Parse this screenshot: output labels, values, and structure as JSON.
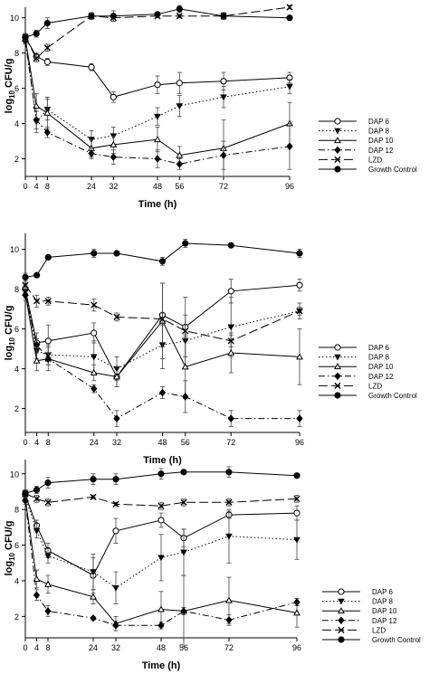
{
  "chart_data": [
    {
      "type": "line",
      "xlabel": "Time (h)",
      "ylabel_main": "log",
      "ylabel_sub": "10",
      "ylabel_tail": " CFU/g",
      "x": [
        0,
        4,
        8,
        24,
        32,
        48,
        56,
        72,
        96
      ],
      "x_ticks": [
        0,
        4,
        8,
        24,
        32,
        48,
        56,
        72,
        96
      ],
      "y_ticks": [
        2,
        4,
        6,
        8,
        10
      ],
      "xlim": [
        0,
        96
      ],
      "ylim": [
        1,
        10.6
      ],
      "legend_position": "right",
      "series": [
        {
          "name": "DAP 6",
          "marker": "open-circle",
          "dash": "solid",
          "values": [
            8.9,
            7.8,
            7.5,
            7.2,
            5.5,
            6.2,
            6.3,
            6.4,
            6.6
          ],
          "errors": [
            0.2,
            0.2,
            0.2,
            0.2,
            0.3,
            0.5,
            0.6,
            0.5,
            0.3
          ]
        },
        {
          "name": "DAP 8",
          "marker": "filled-triangle-down",
          "dash": "dot",
          "values": [
            8.8,
            4.1,
            4.8,
            3.1,
            3.3,
            4.4,
            5.0,
            5.5,
            6.1
          ],
          "errors": [
            0.2,
            0.6,
            0.6,
            0.5,
            0.5,
            0.5,
            0.6,
            0.6,
            0.4
          ]
        },
        {
          "name": "DAP 10",
          "marker": "open-triangle-up",
          "dash": "solid",
          "values": [
            8.8,
            5.0,
            4.6,
            2.6,
            2.8,
            3.1,
            2.2,
            2.6,
            4.0
          ],
          "errors": [
            0.2,
            0.7,
            0.9,
            0.5,
            0.5,
            0.7,
            0.5,
            1.6,
            1.2
          ]
        },
        {
          "name": "DAP 12",
          "marker": "filled-diamond",
          "dash": "dashdot",
          "values": [
            8.7,
            4.2,
            3.5,
            2.3,
            2.1,
            2.0,
            1.7,
            2.2,
            2.7
          ],
          "errors": [
            0.2,
            0.5,
            0.3,
            0.3,
            0.4,
            0.5,
            0.3,
            0.8,
            1.3
          ]
        },
        {
          "name": "LZD",
          "marker": "x",
          "dash": "longdash",
          "values": [
            8.9,
            7.7,
            8.3,
            10.1,
            10.0,
            10.1,
            10.1,
            10.1,
            10.6
          ],
          "errors": [
            0.2,
            0.2,
            0.2,
            0.1,
            0.2,
            0.1,
            0.1,
            0.2,
            0.1
          ]
        },
        {
          "name": "Growth Control",
          "marker": "filled-circle",
          "dash": "solid",
          "values": [
            8.9,
            9.1,
            9.7,
            10.1,
            10.1,
            10.2,
            10.5,
            10.1,
            10.0
          ],
          "errors": [
            0.2,
            0.2,
            0.3,
            0.2,
            0.3,
            0.1,
            0.2,
            0.2,
            0.1
          ]
        }
      ]
    },
    {
      "type": "line",
      "xlabel": "Time (h)",
      "ylabel_main": "log",
      "ylabel_sub": "10",
      "ylabel_tail": " CFU/g",
      "x": [
        0,
        4,
        8,
        24,
        32,
        48,
        56,
        72,
        96
      ],
      "x_ticks": [
        0,
        4,
        8,
        24,
        32,
        48,
        56,
        72,
        96
      ],
      "y_ticks": [
        2,
        4,
        6,
        8,
        10
      ],
      "xlim": [
        0,
        96
      ],
      "ylim": [
        0.8,
        10.8
      ],
      "legend_position": "right",
      "series": [
        {
          "name": "DAP 6",
          "marker": "open-circle",
          "dash": "solid",
          "values": [
            8.0,
            5.3,
            5.4,
            5.8,
            3.6,
            6.7,
            6.1,
            7.9,
            8.2
          ],
          "errors": [
            0.3,
            0.5,
            0.8,
            0.5,
            0.5,
            1.6,
            1.5,
            0.6,
            0.3
          ]
        },
        {
          "name": "DAP 8",
          "marker": "filled-triangle-down",
          "dash": "dot",
          "values": [
            7.9,
            4.9,
            4.7,
            4.6,
            4.0,
            5.2,
            5.4,
            6.1,
            6.9
          ],
          "errors": [
            0.3,
            0.4,
            0.5,
            0.8,
            0.6,
            1.2,
            1.3,
            1.5,
            0.4
          ]
        },
        {
          "name": "DAP 10",
          "marker": "open-triangle-up",
          "dash": "solid",
          "values": [
            7.8,
            4.4,
            4.5,
            3.8,
            3.6,
            6.4,
            4.1,
            4.8,
            4.6
          ],
          "errors": [
            0.3,
            0.5,
            0.6,
            0.4,
            0.5,
            1.9,
            1.6,
            1.0,
            1.4
          ]
        },
        {
          "name": "DAP 12",
          "marker": "filled-diamond",
          "dash": "dashdot",
          "values": [
            7.7,
            5.2,
            4.5,
            3.0,
            1.5,
            2.8,
            2.6,
            1.5,
            1.5
          ],
          "errors": [
            0.3,
            0.3,
            0.3,
            0.2,
            0.4,
            0.3,
            0.8,
            0.4,
            0.4
          ]
        },
        {
          "name": "LZD",
          "marker": "x",
          "dash": "longdash",
          "values": [
            8.2,
            7.4,
            7.4,
            7.2,
            6.6,
            6.5,
            5.9,
            5.4,
            6.9
          ],
          "errors": [
            0.2,
            0.3,
            0.2,
            0.3,
            0.2,
            0.3,
            0.3,
            0.3,
            0.2
          ]
        },
        {
          "name": "Growth Control",
          "marker": "filled-circle",
          "dash": "solid",
          "values": [
            8.6,
            8.7,
            9.6,
            9.8,
            9.8,
            9.4,
            10.3,
            10.2,
            9.8
          ],
          "errors": [
            0.2,
            0.1,
            0.1,
            0.2,
            0.1,
            0.2,
            0.2,
            0.1,
            0.2
          ]
        }
      ]
    },
    {
      "type": "line",
      "xlabel": "Time (h)",
      "ylabel_main": "log",
      "ylabel_sub": "10",
      "ylabel_tail": " CFU/g",
      "x": [
        0,
        4,
        8,
        24,
        32,
        48,
        56,
        72,
        96
      ],
      "x_ticks": [
        0,
        4,
        8,
        24,
        32,
        48,
        56,
        72,
        96
      ],
      "y_ticks": [
        2,
        4,
        6,
        8,
        10
      ],
      "xlim": [
        0,
        96
      ],
      "ylim": [
        0.8,
        10.8
      ],
      "legend_position": "bottom-right",
      "series": [
        {
          "name": "DAP 6",
          "marker": "open-circle",
          "dash": "solid",
          "values": [
            8.8,
            7.1,
            5.7,
            4.3,
            6.8,
            7.4,
            6.4,
            7.7,
            7.8
          ],
          "errors": [
            0.2,
            0.3,
            0.4,
            1.0,
            0.7,
            0.4,
            0.5,
            0.2,
            0.4
          ]
        },
        {
          "name": "DAP 8",
          "marker": "filled-triangle-down",
          "dash": "dot",
          "values": [
            8.7,
            6.8,
            5.4,
            4.5,
            3.6,
            5.3,
            5.6,
            6.5,
            6.3
          ],
          "errors": [
            0.2,
            0.4,
            0.4,
            1.0,
            0.9,
            1.3,
            1.3,
            1.5,
            1.1
          ]
        },
        {
          "name": "DAP 10",
          "marker": "open-triangle-up",
          "dash": "solid",
          "values": [
            8.6,
            4.1,
            3.8,
            3.1,
            1.6,
            2.4,
            2.3,
            2.9,
            2.2
          ],
          "errors": [
            0.2,
            0.5,
            0.5,
            0.4,
            0.4,
            1.0,
            2.0,
            1.3,
            0.8
          ]
        },
        {
          "name": "DAP 12",
          "marker": "filled-diamond",
          "dash": "dashdot",
          "values": [
            8.5,
            3.2,
            2.3,
            1.9,
            1.5,
            1.5,
            2.3,
            1.8,
            2.8
          ],
          "errors": [
            0.2,
            0.3,
            0.3,
            0.1,
            0.1,
            0.2,
            0.2,
            0.3,
            0.2
          ]
        },
        {
          "name": "LZD",
          "marker": "x",
          "dash": "longdash",
          "values": [
            8.9,
            8.6,
            8.4,
            8.7,
            8.3,
            8.2,
            8.4,
            8.4,
            8.6
          ],
          "errors": [
            0.2,
            0.2,
            0.2,
            0.1,
            0.1,
            0.2,
            0.2,
            0.2,
            0.2
          ]
        },
        {
          "name": "Growth Control",
          "marker": "filled-circle",
          "dash": "solid",
          "values": [
            8.9,
            9.1,
            9.5,
            9.7,
            9.7,
            10.0,
            10.1,
            10.1,
            9.9
          ],
          "errors": [
            0.2,
            0.2,
            0.3,
            0.3,
            0.3,
            0.3,
            0.1,
            0.3,
            0.1
          ]
        }
      ]
    }
  ]
}
